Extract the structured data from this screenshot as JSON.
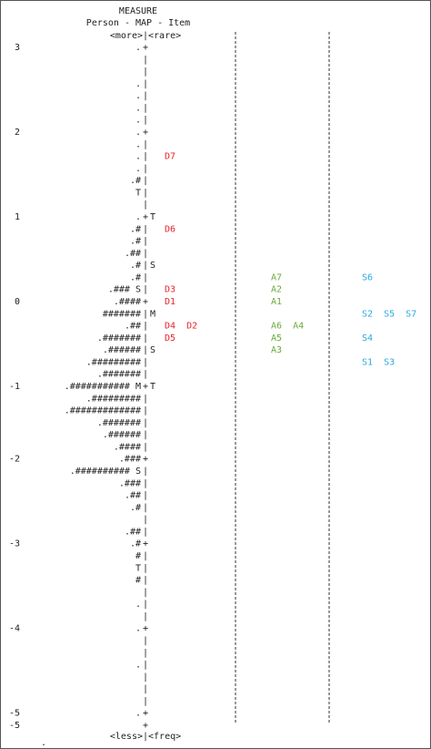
{
  "header": {
    "title": "MEASURE",
    "subtitle": "Person - MAP - Item",
    "top": "<more>|<rare>"
  },
  "footer": "<less>|<freq>",
  "rows": [
    {
      "n": "3",
      "p": ".",
      "c": "+"
    },
    {
      "c": "|"
    },
    {
      "c": "|"
    },
    {
      "p": ".",
      "c": "|"
    },
    {
      "p": ".",
      "c": "|"
    },
    {
      "p": ".",
      "c": "|"
    },
    {
      "p": ".",
      "c": "|"
    },
    {
      "n": "2",
      "p": ".",
      "c": "+"
    },
    {
      "p": ".",
      "c": "|"
    },
    {
      "p": ".",
      "c": "|",
      "d": "D7"
    },
    {
      "p": ".",
      "c": "|"
    },
    {
      "p": ".#",
      "c": "|"
    },
    {
      "p": "T",
      "c": "|"
    },
    {
      "c": "|"
    },
    {
      "n": "1",
      "p": ".",
      "c": "+",
      "r": "T"
    },
    {
      "p": ".#",
      "c": "|",
      "d": "D6"
    },
    {
      "p": ".#",
      "c": "|"
    },
    {
      "p": ".##",
      "c": "|"
    },
    {
      "p": ".#",
      "c": "|",
      "r": "S"
    },
    {
      "p": ".#",
      "c": "|",
      "a": "A7",
      "s": "S6"
    },
    {
      "p": ".### S",
      "c": "|",
      "d": "D3",
      "a": "A2"
    },
    {
      "n": "0",
      "p": ".####",
      "c": "+",
      "d": "D1",
      "a": "A1"
    },
    {
      "p": "#######",
      "c": "|",
      "r": "M",
      "s": "S2  S5  S7"
    },
    {
      "p": ".##",
      "c": "|",
      "d": "D4  D2",
      "a": "A6  A4"
    },
    {
      "p": ".#######",
      "c": "|",
      "d": "D5",
      "a": "A5",
      "s": "S4"
    },
    {
      "p": ".######",
      "c": "|",
      "r": "S",
      "a": "A3"
    },
    {
      "p": ".#########",
      "c": "|",
      "s": "S1  S3"
    },
    {
      "p": ".#######",
      "c": "|"
    },
    {
      "n": "-1",
      "p": ".########### M",
      "c": "+",
      "r": "T"
    },
    {
      "p": ".#########",
      "c": "|"
    },
    {
      "p": ".#############",
      "c": "|"
    },
    {
      "p": ".#######",
      "c": "|"
    },
    {
      "p": ".######",
      "c": "|"
    },
    {
      "p": ".####",
      "c": "|"
    },
    {
      "n": "-2",
      "p": ".###",
      "c": "+"
    },
    {
      "p": ".########## S",
      "c": "|"
    },
    {
      "p": ".###",
      "c": "|"
    },
    {
      "p": ".##",
      "c": "|"
    },
    {
      "p": ".#",
      "c": "|"
    },
    {
      "c": "|"
    },
    {
      "p": ".##",
      "c": "|"
    },
    {
      "n": "-3",
      "p": ".#",
      "c": "+"
    },
    {
      "p": "#",
      "c": "|"
    },
    {
      "p": "T",
      "c": "|"
    },
    {
      "p": "#",
      "c": "|"
    },
    {
      "c": "|"
    },
    {
      "p": ".",
      "c": "|"
    },
    {
      "c": "|"
    },
    {
      "n": "-4",
      "p": ".",
      "c": "+"
    },
    {
      "c": "|"
    },
    {
      "c": "|"
    },
    {
      "p": ".",
      "c": "|"
    },
    {
      "c": "|"
    },
    {
      "c": "|"
    },
    {
      "c": "|"
    },
    {
      "n": "-5",
      "p": ".",
      "c": "+"
    },
    {
      "n": "-5",
      "c": "+"
    }
  ]
}
